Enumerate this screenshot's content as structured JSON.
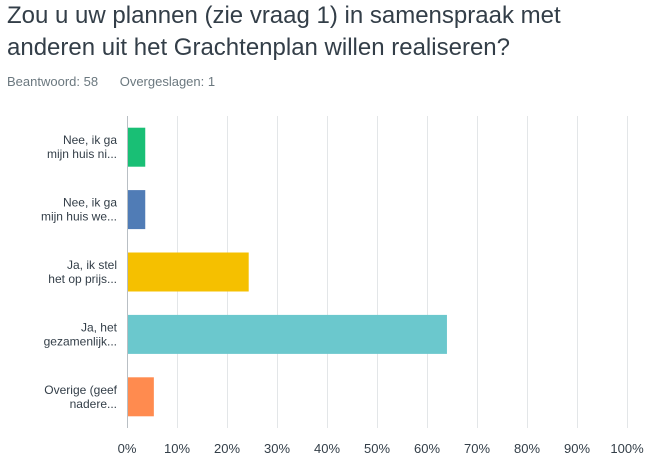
{
  "question": {
    "title_line1": "Zou u uw plannen (zie vraag 1) in samenspraak met",
    "title_line2": "anderen uit het Grachtenplan willen realiseren?"
  },
  "stats": {
    "answered_label": "Beantwoord: 58",
    "skipped_label": "Overgeslagen: 1"
  },
  "chart_data": {
    "type": "bar",
    "orientation": "horizontal",
    "categories": [
      [
        "Nee, ik ga",
        "mijn huis ni..."
      ],
      [
        "Nee, ik ga",
        "mijn huis we..."
      ],
      [
        "Ja, ik stel",
        "het op prijs..."
      ],
      [
        "Ja, het",
        "gezamenlijk..."
      ],
      [
        "Overige (geef",
        "nadere..."
      ]
    ],
    "values": [
      3.45,
      3.45,
      24.14,
      63.79,
      5.17
    ],
    "colors": [
      "#19bf75",
      "#507cb6",
      "#f5c000",
      "#6bc8cd",
      "#ff8b4f"
    ],
    "xlim": [
      0,
      100
    ],
    "ticks": [
      "0%",
      "10%",
      "20%",
      "30%",
      "40%",
      "50%",
      "60%",
      "70%",
      "80%",
      "90%",
      "100%"
    ],
    "grid": true
  }
}
